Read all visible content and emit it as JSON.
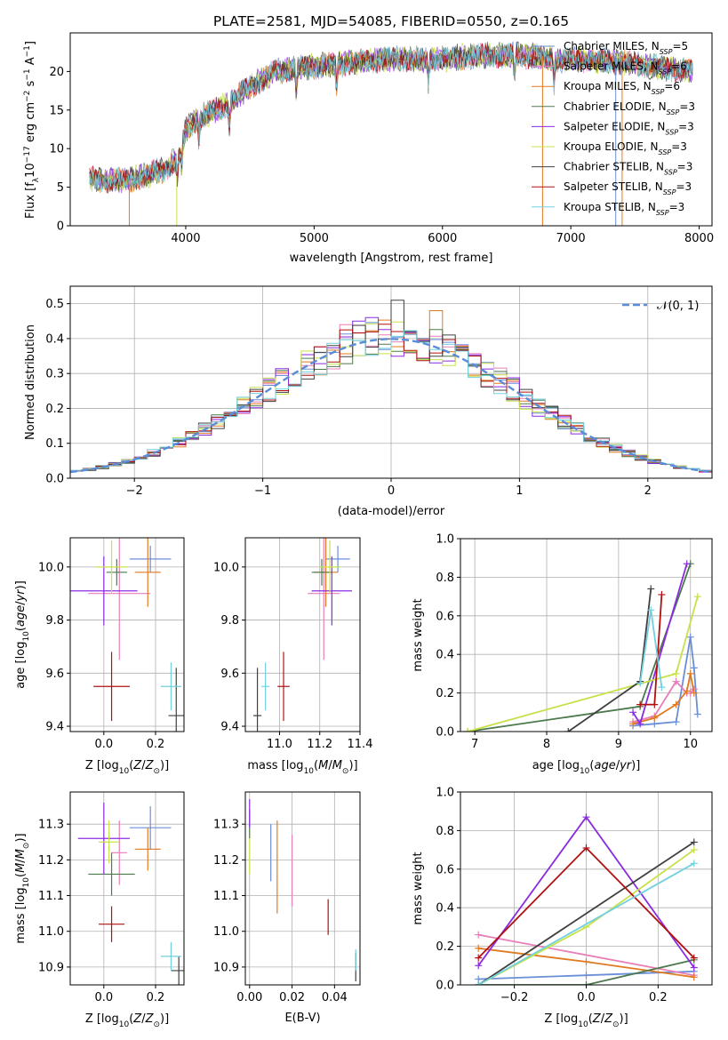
{
  "figure_title": "PLATE=2581, MJD=54085, FIBERID=0550, z=0.165",
  "colors": {
    "Chabrier MILES": "#6a8fd8",
    "Salpeter MILES": "#e87db8",
    "Kroupa MILES": "#e07a20",
    "Chabrier ELODIE": "#4d7a4d",
    "Salpeter ELODIE": "#8a2be2",
    "Kroupa ELODIE": "#c8e04a",
    "Chabrier STELIB": "#404040",
    "Salpeter STELIB": "#b01010",
    "Kroupa STELIB": "#70d0e0",
    "normal": "#5b8cd8",
    "grid": "#b0b0b0"
  },
  "chart_data": [
    {
      "type": "line",
      "title": "PLATE=2581, MJD=54085, FIBERID=0550, z=0.165",
      "xlabel": "wavelength [Angstrom, rest frame]",
      "ylabel": "Flux [f_λ 10^-17 erg cm^-2 s^-1 A^-1]",
      "xlim": [
        3100,
        8100
      ],
      "ylim": [
        0,
        25
      ],
      "xticks": [
        4000,
        5000,
        6000,
        7000,
        8000
      ],
      "yticks": [
        0,
        5,
        10,
        15,
        20
      ],
      "grid": false,
      "legend_position": "top-right",
      "legend": [
        {
          "label": "Chabrier MILES, N",
          "sub": "SSP",
          "tail": "=5"
        },
        {
          "label": "Salpeter MILES, N",
          "sub": "SSP",
          "tail": "=6"
        },
        {
          "label": "Kroupa MILES, N",
          "sub": "SSP",
          "tail": "=6"
        },
        {
          "label": "Chabrier ELODIE, N",
          "sub": "SSP",
          "tail": "=3"
        },
        {
          "label": "Salpeter ELODIE, N",
          "sub": "SSP",
          "tail": "=3"
        },
        {
          "label": "Kroupa ELODIE, N",
          "sub": "SSP",
          "tail": "=3"
        },
        {
          "label": "Chabrier STELIB, N",
          "sub": "SSP",
          "tail": "=3"
        },
        {
          "label": "Salpeter STELIB, N",
          "sub": "SSP",
          "tail": "=3"
        },
        {
          "label": "Kroupa STELIB, N",
          "sub": "SSP",
          "tail": "=3"
        }
      ],
      "series_names": [
        "Chabrier MILES",
        "Salpeter MILES",
        "Kroupa MILES",
        "Chabrier ELODIE",
        "Salpeter ELODIE",
        "Kroupa ELODIE",
        "Chabrier STELIB",
        "Salpeter STELIB",
        "Kroupa STELIB"
      ],
      "continuum": {
        "x": [
          3250,
          3500,
          3700,
          3850,
          3950,
          4000,
          4100,
          4300,
          4500,
          4700,
          4900,
          5100,
          5300,
          5500,
          5700,
          5900,
          6100,
          6300,
          6500,
          6700,
          6900,
          7100,
          7300,
          7500,
          7700,
          7900
        ],
        "y": [
          6.0,
          5.8,
          6.5,
          7.5,
          9.0,
          12.5,
          14.0,
          15.5,
          18.0,
          20.0,
          20.5,
          20.8,
          21.2,
          21.5,
          21.7,
          21.5,
          21.8,
          22.0,
          22.2,
          22.0,
          21.5,
          21.5,
          21.3,
          21.0,
          20.5,
          20.2
        ]
      },
      "drops": [
        {
          "series": "Kroupa MILES",
          "x": 3560,
          "y": [
            0,
            5.5
          ]
        },
        {
          "series": "Kroupa ELODIE",
          "x": 3930,
          "y": [
            0,
            6.5
          ]
        },
        {
          "series": "Kroupa MILES",
          "x": 6780,
          "y": [
            0,
            22
          ]
        },
        {
          "series": "Kroupa MILES",
          "x": 7400,
          "y": [
            0,
            22
          ]
        },
        {
          "series": "Chabrier MILES",
          "x": 7350,
          "y": [
            0,
            22
          ]
        }
      ]
    },
    {
      "type": "histogram",
      "xlabel": "(data-model)/error",
      "ylabel": "Normed distribution",
      "xlim": [
        -2.5,
        2.5
      ],
      "ylim": [
        0,
        0.55
      ],
      "xticks": [
        -2,
        -1,
        0,
        1,
        2
      ],
      "yticks": [
        0.0,
        0.1,
        0.2,
        0.3,
        0.4,
        0.5
      ],
      "grid": true,
      "legend_position": "top-right",
      "legend_label": "𝒩(0, 1)",
      "bin_width": 0.1,
      "bin_start": -2.5,
      "reference_curve": "normal(0,1)",
      "series_names": [
        "Chabrier MILES",
        "Salpeter MILES",
        "Kroupa MILES",
        "Chabrier ELODIE",
        "Salpeter ELODIE",
        "Kroupa ELODIE",
        "Chabrier STELIB",
        "Salpeter STELIB",
        "Kroupa STELIB"
      ],
      "highlight_bins": {
        "Salpeter ELODIE": [
          [
            -0.3,
            0.45
          ],
          [
            -0.2,
            0.46
          ]
        ],
        "Chabrier STELIB": [
          [
            0.0,
            0.51
          ]
        ],
        "Kroupa MILES": [
          [
            0.3,
            0.48
          ]
        ],
        "Salpeter MILES": [
          [
            -0.4,
            0.44
          ]
        ]
      }
    },
    {
      "type": "errorbar",
      "xlabel": "Z [log10(Z/Z☉)]",
      "ylabel": "age  [log10(age/yr)]",
      "xlim": [
        -0.13,
        0.31
      ],
      "ylim": [
        9.38,
        10.11
      ],
      "xticks": [
        "0.0",
        "0.2"
      ],
      "yticks": [
        "9.4",
        "9.6",
        "9.8",
        "10.0"
      ],
      "grid": true,
      "points": [
        {
          "series": "Chabrier MILES",
          "x": 0.18,
          "xerr": 0.08,
          "y": 10.03,
          "yerr": 0.05
        },
        {
          "series": "Salpeter MILES",
          "x": 0.06,
          "xerr": 0.12,
          "y": 9.9,
          "yerr": 0.25
        },
        {
          "series": "Kroupa MILES",
          "x": 0.17,
          "xerr": 0.05,
          "y": 9.98,
          "yerr": 0.13
        },
        {
          "series": "Chabrier ELODIE",
          "x": 0.05,
          "xerr": 0.04,
          "y": 9.98,
          "yerr": 0.05
        },
        {
          "series": "Salpeter ELODIE",
          "x": 0.0,
          "xerr": 0.13,
          "y": 9.91,
          "yerr": 0.13
        },
        {
          "series": "Kroupa ELODIE",
          "x": 0.03,
          "xerr": 0.06,
          "y": 10.0,
          "yerr": 0.1
        },
        {
          "series": "Chabrier STELIB",
          "x": 0.28,
          "xerr": 0.03,
          "y": 9.44,
          "yerr": 0.18
        },
        {
          "series": "Salpeter STELIB",
          "x": 0.03,
          "xerr": 0.07,
          "y": 9.55,
          "yerr": 0.13
        },
        {
          "series": "Kroupa STELIB",
          "x": 0.26,
          "xerr": 0.04,
          "y": 9.55,
          "yerr": 0.09
        }
      ]
    },
    {
      "type": "errorbar",
      "xlabel": "mass [log10(M/M☉)]",
      "ylabel": "",
      "xlim": [
        10.83,
        11.4
      ],
      "ylim": [
        9.38,
        10.11
      ],
      "xticks": [
        "11.0",
        "11.2",
        "11.4"
      ],
      "yticks": [
        "9.4",
        "9.6",
        "9.8",
        "10.0"
      ],
      "grid": true,
      "points": [
        {
          "series": "Chabrier MILES",
          "x": 11.29,
          "xerr": 0.06,
          "y": 10.03,
          "yerr": 0.05
        },
        {
          "series": "Salpeter MILES",
          "x": 11.22,
          "xerr": 0.08,
          "y": 9.9,
          "yerr": 0.25
        },
        {
          "series": "Kroupa MILES",
          "x": 11.23,
          "xerr": 0.06,
          "y": 9.98,
          "yerr": 0.13
        },
        {
          "series": "Chabrier ELODIE",
          "x": 11.21,
          "xerr": 0.05,
          "y": 9.98,
          "yerr": 0.05
        },
        {
          "series": "Salpeter ELODIE",
          "x": 11.26,
          "xerr": 0.1,
          "y": 9.91,
          "yerr": 0.13
        },
        {
          "series": "Kroupa ELODIE",
          "x": 11.25,
          "xerr": 0.05,
          "y": 10.0,
          "yerr": 0.1
        },
        {
          "series": "Chabrier STELIB",
          "x": 10.89,
          "xerr": 0.02,
          "y": 9.44,
          "yerr": 0.18
        },
        {
          "series": "Salpeter STELIB",
          "x": 11.02,
          "xerr": 0.03,
          "y": 9.55,
          "yerr": 0.13
        },
        {
          "series": "Kroupa STELIB",
          "x": 10.93,
          "xerr": 0.02,
          "y": 9.55,
          "yerr": 0.09
        }
      ]
    },
    {
      "type": "line",
      "xlabel": "age  [log10(age/yr)]",
      "ylabel": "mass weight",
      "xlim": [
        6.8,
        10.3
      ],
      "ylim": [
        0,
        1
      ],
      "xticks": [
        "7",
        "8",
        "9",
        "10"
      ],
      "yticks": [
        "0.0",
        "0.2",
        "0.4",
        "0.6",
        "0.8",
        "1.0"
      ],
      "grid": true,
      "series": [
        {
          "name": "Chabrier MILES",
          "x": [
            9.2,
            9.5,
            9.8,
            10.0,
            10.05,
            10.1
          ],
          "y": [
            0.03,
            0.04,
            0.05,
            0.49,
            0.33,
            0.09
          ]
        },
        {
          "name": "Salpeter MILES",
          "x": [
            9.2,
            9.5,
            9.8,
            9.95,
            10.0,
            10.05
          ],
          "y": [
            0.05,
            0.08,
            0.26,
            0.2,
            0.2,
            0.22
          ]
        },
        {
          "name": "Kroupa MILES",
          "x": [
            9.2,
            9.5,
            9.8,
            9.95,
            10.0,
            10.05
          ],
          "y": [
            0.04,
            0.07,
            0.14,
            0.21,
            0.3,
            0.2
          ]
        },
        {
          "name": "Chabrier ELODIE",
          "x": [
            6.9,
            9.3,
            10.0
          ],
          "y": [
            0.0,
            0.13,
            0.87
          ]
        },
        {
          "name": "Salpeter ELODIE",
          "x": [
            9.2,
            9.3,
            9.95
          ],
          "y": [
            0.1,
            0.04,
            0.87
          ]
        },
        {
          "name": "Kroupa ELODIE",
          "x": [
            6.9,
            9.8,
            10.1
          ],
          "y": [
            0.0,
            0.3,
            0.7
          ]
        },
        {
          "name": "Chabrier STELIB",
          "x": [
            8.3,
            9.3,
            9.45
          ],
          "y": [
            0.0,
            0.26,
            0.74
          ]
        },
        {
          "name": "Salpeter STELIB",
          "x": [
            9.3,
            9.5,
            9.6
          ],
          "y": [
            0.14,
            0.14,
            0.71
          ]
        },
        {
          "name": "Kroupa STELIB",
          "x": [
            9.3,
            9.45,
            9.6
          ],
          "y": [
            0.25,
            0.63,
            0.23
          ]
        }
      ]
    },
    {
      "type": "errorbar",
      "xlabel": "Z [log10(Z/Z☉)]",
      "ylabel": "mass [log10(M/M☉)]",
      "xlim": [
        -0.13,
        0.31
      ],
      "ylim": [
        10.85,
        11.39
      ],
      "xticks": [
        "0.0",
        "0.2"
      ],
      "yticks": [
        "10.9",
        "11.0",
        "11.1",
        "11.2",
        "11.3"
      ],
      "grid": true,
      "points": [
        {
          "series": "Chabrier MILES",
          "x": 0.18,
          "xerr": 0.08,
          "y": 11.29,
          "yerr": 0.06
        },
        {
          "series": "Salpeter MILES",
          "x": 0.06,
          "xerr": 0.03,
          "y": 11.22,
          "yerr": 0.09
        },
        {
          "series": "Kroupa MILES",
          "x": 0.17,
          "xerr": 0.05,
          "y": 11.23,
          "yerr": 0.06
        },
        {
          "series": "Chabrier ELODIE",
          "x": 0.03,
          "xerr": 0.09,
          "y": 11.16,
          "yerr": 0.06
        },
        {
          "series": "Salpeter ELODIE",
          "x": 0.0,
          "xerr": 0.1,
          "y": 11.26,
          "yerr": 0.1
        },
        {
          "series": "Kroupa ELODIE",
          "x": 0.02,
          "xerr": 0.04,
          "y": 11.25,
          "yerr": 0.06
        },
        {
          "series": "Chabrier STELIB",
          "x": 0.29,
          "xerr": 0.03,
          "y": 10.89,
          "yerr": 0.04
        },
        {
          "series": "Salpeter STELIB",
          "x": 0.03,
          "xerr": 0.05,
          "y": 11.02,
          "yerr": 0.05
        },
        {
          "series": "Kroupa STELIB",
          "x": 0.26,
          "xerr": 0.04,
          "y": 10.93,
          "yerr": 0.04
        }
      ]
    },
    {
      "type": "errorbar",
      "xlabel": "E(B-V)",
      "ylabel": "",
      "xlim": [
        -0.002,
        0.052
      ],
      "ylim": [
        10.85,
        11.39
      ],
      "xticks": [
        "0.00",
        "0.02",
        "0.04"
      ],
      "yticks": [
        "10.9",
        "11.0",
        "11.1",
        "11.2",
        "11.3"
      ],
      "grid": true,
      "points": [
        {
          "series": "Chabrier MILES",
          "x": 0.01,
          "xerr": 0,
          "y": 11.22,
          "yerr": 0.08
        },
        {
          "series": "Salpeter MILES",
          "x": 0.02,
          "xerr": 0,
          "y": 11.17,
          "yerr": 0.1
        },
        {
          "series": "Kroupa MILES",
          "x": 0.013,
          "xerr": 0,
          "y": 11.18,
          "yerr": 0.13
        },
        {
          "series": "Chabrier ELODIE",
          "x": 0.0,
          "xerr": 0,
          "y": 11.3,
          "yerr": 0.04
        },
        {
          "series": "Salpeter ELODIE",
          "x": 0.0,
          "xerr": 0,
          "y": 11.33,
          "yerr": 0.04
        },
        {
          "series": "Kroupa ELODIE",
          "x": 0.0,
          "xerr": 0,
          "y": 11.21,
          "yerr": 0.05
        },
        {
          "series": "Chabrier STELIB",
          "x": 0.05,
          "xerr": 0,
          "y": 10.9,
          "yerr": 0.04
        },
        {
          "series": "Salpeter STELIB",
          "x": 0.037,
          "xerr": 0,
          "y": 11.04,
          "yerr": 0.05
        },
        {
          "series": "Kroupa STELIB",
          "x": 0.05,
          "xerr": 0,
          "y": 10.92,
          "yerr": 0.03
        }
      ]
    },
    {
      "type": "line",
      "xlabel": "Z [log10(Z/Z☉)]",
      "ylabel": "mass weight",
      "xlim": [
        -0.35,
        0.35
      ],
      "ylim": [
        0,
        1
      ],
      "xticks": [
        "−0.2",
        "0.0",
        "0.2"
      ],
      "yticks": [
        "0.0",
        "0.2",
        "0.4",
        "0.6",
        "0.8",
        "1.0"
      ],
      "grid": true,
      "series": [
        {
          "name": "Chabrier MILES",
          "x": [
            -0.3,
            0.0,
            0.3
          ],
          "y": [
            0.03,
            0.05,
            0.07
          ]
        },
        {
          "name": "Salpeter MILES",
          "x": [
            -0.3,
            0.3
          ],
          "y": [
            0.26,
            0.05
          ]
        },
        {
          "name": "Kroupa MILES",
          "x": [
            -0.3,
            0.0,
            0.3
          ],
          "y": [
            0.19,
            0.12,
            0.04
          ]
        },
        {
          "name": "Chabrier ELODIE",
          "x": [
            -0.3,
            0.0,
            0.3
          ],
          "y": [
            0.0,
            0.0,
            0.13
          ]
        },
        {
          "name": "Salpeter ELODIE",
          "x": [
            -0.3,
            0.0,
            0.3
          ],
          "y": [
            0.1,
            0.87,
            0.09
          ]
        },
        {
          "name": "Kroupa ELODIE",
          "x": [
            -0.3,
            0.0,
            0.3
          ],
          "y": [
            0.0,
            0.3,
            0.7
          ]
        },
        {
          "name": "Chabrier STELIB",
          "x": [
            -0.3,
            0.3
          ],
          "y": [
            0.0,
            0.74
          ]
        },
        {
          "name": "Salpeter STELIB",
          "x": [
            -0.3,
            0.0,
            0.3
          ],
          "y": [
            0.14,
            0.71,
            0.14
          ]
        },
        {
          "name": "Kroupa STELIB",
          "x": [
            -0.3,
            0.3
          ],
          "y": [
            0.0,
            0.63
          ]
        }
      ]
    }
  ]
}
